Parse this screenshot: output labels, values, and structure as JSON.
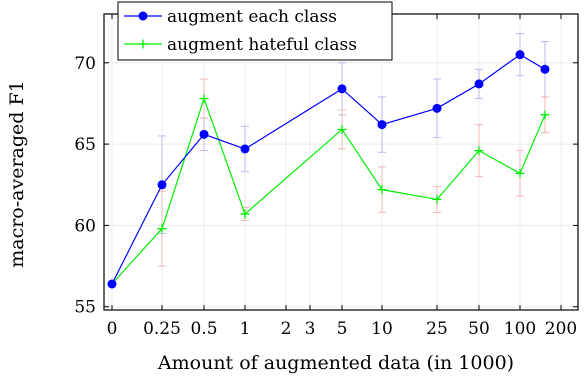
{
  "chart_data": {
    "type": "line",
    "title": "",
    "xlabel": "Amount of augmented data (in 1000)",
    "ylabel": "macro-averaged F1",
    "x_scale": "log-like categorical",
    "x_ticks": [
      "0",
      "0.25",
      "0.5",
      "1",
      "2",
      "3",
      "5",
      "10",
      "25",
      "50",
      "100",
      "200"
    ],
    "ylim": [
      54.8,
      73.0
    ],
    "y_ticks": [
      55,
      60,
      65,
      70
    ],
    "grid": true,
    "legend_position": "top-left",
    "series": [
      {
        "name": "augment each class",
        "color": "#0000ff",
        "marker": "circle",
        "error_bar_color": "#b8b8ee",
        "points": [
          {
            "x": "0",
            "y": 56.4,
            "err": 0.0
          },
          {
            "x": "0.25",
            "y": 62.5,
            "err": 3.0
          },
          {
            "x": "0.5",
            "y": 65.6,
            "err": 1.0
          },
          {
            "x": "1",
            "y": 64.7,
            "err": 1.4
          },
          {
            "x": "5",
            "y": 68.4,
            "err": 1.6
          },
          {
            "x": "10",
            "y": 66.2,
            "err": 1.7
          },
          {
            "x": "25",
            "y": 67.2,
            "err": 1.8
          },
          {
            "x": "50",
            "y": 68.7,
            "err": 0.9
          },
          {
            "x": "100",
            "y": 70.5,
            "err": 1.3
          },
          {
            "x": "150",
            "y": 69.6,
            "err": 1.7
          }
        ]
      },
      {
        "name": "augment hateful class",
        "color": "#00ee00",
        "marker": "plus",
        "error_bar_color": "#f0b8b8",
        "points": [
          {
            "x": "0",
            "y": 56.4,
            "err": 0.0
          },
          {
            "x": "0.25",
            "y": 59.8,
            "err": 2.3
          },
          {
            "x": "0.5",
            "y": 67.8,
            "err": 1.2
          },
          {
            "x": "1",
            "y": 60.7,
            "err": 0.4
          },
          {
            "x": "5",
            "y": 65.9,
            "err": 1.2
          },
          {
            "x": "10",
            "y": 62.2,
            "err": 1.4
          },
          {
            "x": "25",
            "y": 61.6,
            "err": 0.8
          },
          {
            "x": "50",
            "y": 64.6,
            "err": 1.6
          },
          {
            "x": "100",
            "y": 63.2,
            "err": 1.4
          },
          {
            "x": "150",
            "y": 66.8,
            "err": 1.1
          }
        ]
      }
    ]
  }
}
